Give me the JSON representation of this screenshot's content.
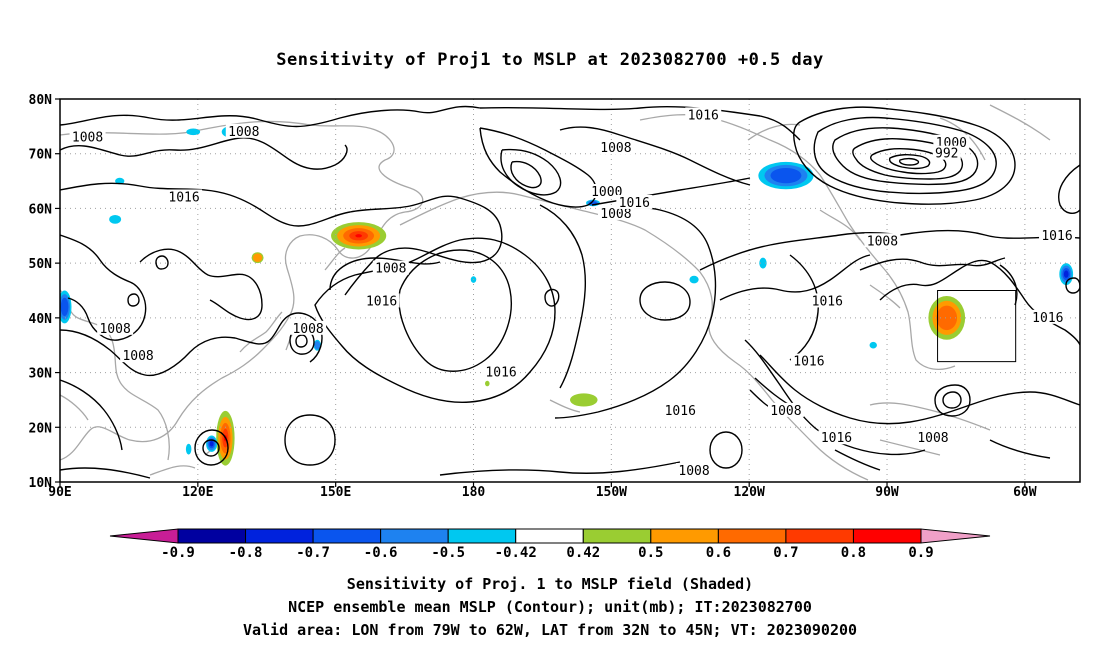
{
  "title": "Sensitivity of Proj1 to MSLP at 2023082700 +0.5 day",
  "map": {
    "lon_ticks": [
      "90E",
      "120E",
      "150E",
      "180",
      "150W",
      "120W",
      "90W",
      "60W"
    ],
    "lat_ticks": [
      "80N",
      "70N",
      "60N",
      "50N",
      "40N",
      "30N",
      "20N",
      "10N"
    ],
    "lon_range": [
      90,
      312
    ],
    "lat_range": [
      10,
      80
    ],
    "valid_area": {
      "lon": [
        -79,
        -62
      ],
      "lat": [
        32,
        45
      ]
    },
    "contour_labels": [
      {
        "text": "1008",
        "lon": 96,
        "lat": 73
      },
      {
        "text": "1008",
        "lon": 130,
        "lat": 74
      },
      {
        "text": "1016",
        "lon": 117,
        "lat": 62
      },
      {
        "text": "1008",
        "lon": 102,
        "lat": 38
      },
      {
        "text": "1008",
        "lon": 107,
        "lat": 33
      },
      {
        "text": "1008",
        "lon": 144,
        "lat": 38
      },
      {
        "text": "1008",
        "lon": 162,
        "lat": 49
      },
      {
        "text": "1016",
        "lon": 160,
        "lat": 43
      },
      {
        "text": "1016",
        "lon": 186,
        "lat": 30
      },
      {
        "text": "1008",
        "lon": 211,
        "lat": 71
      },
      {
        "text": "1016",
        "lon": 230,
        "lat": 77
      },
      {
        "text": "1000",
        "lon": 209,
        "lat": 63
      },
      {
        "text": "1008",
        "lon": 211,
        "lat": 59
      },
      {
        "text": "1016",
        "lon": 215,
        "lat": 61
      },
      {
        "text": "1016",
        "lon": 225,
        "lat": 23
      },
      {
        "text": "1008",
        "lon": 228,
        "lat": 12
      },
      {
        "text": "1000",
        "lon": 284,
        "lat": 72
      },
      {
        "text": "992",
        "lon": 283,
        "lat": 70
      },
      {
        "text": "1008",
        "lon": 269,
        "lat": 54
      },
      {
        "text": "1016",
        "lon": 307,
        "lat": 55
      },
      {
        "text": "1016",
        "lon": 257,
        "lat": 43
      },
      {
        "text": "1016",
        "lon": 253,
        "lat": 32
      },
      {
        "text": "1008",
        "lon": 248,
        "lat": 23
      },
      {
        "text": "1016",
        "lon": 259,
        "lat": 18
      },
      {
        "text": "1008",
        "lon": 280,
        "lat": 18
      },
      {
        "text": "1016",
        "lon": 305,
        "lat": 40
      }
    ],
    "shading": {
      "positive": [
        {
          "lon": 155,
          "lat": 55,
          "rx": 6,
          "ry": 2.5,
          "level": 0.8
        },
        {
          "lon": 126,
          "lat": 18,
          "rx": 2,
          "ry": 5,
          "level": 0.8
        },
        {
          "lon": 133,
          "lat": 51,
          "rx": 1.3,
          "ry": 1,
          "level": 0.5
        },
        {
          "lon": 183,
          "lat": 28,
          "rx": 0.5,
          "ry": 0.5,
          "level": 0.42
        },
        {
          "lon": 204,
          "lat": 25,
          "rx": 3,
          "ry": 1.2,
          "level": 0.42
        },
        {
          "lon": 283,
          "lat": 40,
          "rx": 4,
          "ry": 4,
          "level": 0.6
        }
      ],
      "negative": [
        {
          "lon": 127,
          "lat": 74,
          "rx": 1.8,
          "ry": 1,
          "level": -0.42
        },
        {
          "lon": 119,
          "lat": 74,
          "rx": 1.5,
          "ry": 0.6,
          "level": -0.42
        },
        {
          "lon": 103,
          "lat": 65,
          "rx": 1,
          "ry": 0.6,
          "level": -0.42
        },
        {
          "lon": 102,
          "lat": 58,
          "rx": 1.3,
          "ry": 0.8,
          "level": -0.42
        },
        {
          "lon": 91,
          "lat": 42,
          "rx": 1.5,
          "ry": 3,
          "level": -0.6
        },
        {
          "lon": 123,
          "lat": 17,
          "rx": 1.2,
          "ry": 1.5,
          "level": -0.7
        },
        {
          "lon": 118,
          "lat": 16,
          "rx": 0.6,
          "ry": 1,
          "level": -0.42
        },
        {
          "lon": 146,
          "lat": 35,
          "rx": 0.8,
          "ry": 1,
          "level": -0.5
        },
        {
          "lon": 206,
          "lat": 61,
          "rx": 1.5,
          "ry": 0.6,
          "level": -0.6
        },
        {
          "lon": 248,
          "lat": 66,
          "rx": 6,
          "ry": 2.5,
          "level": -0.6
        },
        {
          "lon": 243,
          "lat": 50,
          "rx": 0.8,
          "ry": 1,
          "level": -0.42
        },
        {
          "lon": 267,
          "lat": 35,
          "rx": 0.8,
          "ry": 0.6,
          "level": -0.42
        },
        {
          "lon": 309,
          "lat": 48,
          "rx": 1.5,
          "ry": 2,
          "level": -0.7
        },
        {
          "lon": 228,
          "lat": 47,
          "rx": 1,
          "ry": 0.7,
          "level": -0.42
        },
        {
          "lon": 180,
          "lat": 47,
          "rx": 0.6,
          "ry": 0.6,
          "level": -0.42
        }
      ]
    }
  },
  "colorbar": {
    "labels": [
      "-0.9",
      "-0.8",
      "-0.7",
      "-0.6",
      "-0.5",
      "-0.42",
      "0.42",
      "0.5",
      "0.6",
      "0.7",
      "0.8",
      "0.9"
    ],
    "colors": [
      "#0000a0",
      "#0022dd",
      "#0a55ee",
      "#1e82f0",
      "#00c8f0",
      "#ffffff",
      "#9acd32",
      "#ff9a00",
      "#ff6a00",
      "#ff3a00",
      "#ff0000"
    ],
    "low_color": "#c81e96",
    "high_color": "#f0a0c8"
  },
  "caption": {
    "line1": "Sensitivity of Proj. 1 to MSLP field (Shaded)",
    "line2": "NCEP ensemble mean MSLP (Contour); unit(mb); IT:2023082700",
    "line3": "Valid area: LON from 79W to 62W, LAT from 32N to 45N; VT: 2023090200"
  }
}
